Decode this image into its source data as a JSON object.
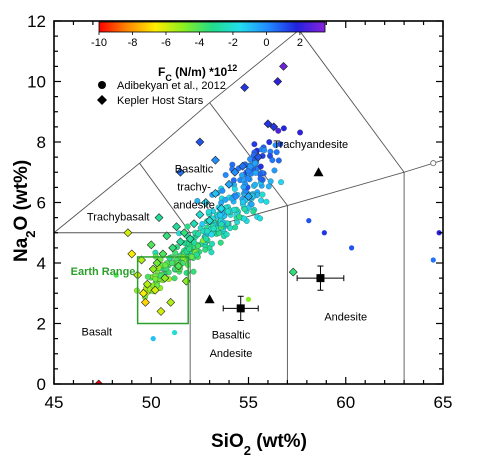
{
  "chart_data": {
    "type": "scatter",
    "xlabel_main": "SiO",
    "xlabel_sub": "2",
    "xlabel_tail": " (wt%)",
    "ylabel_main": "Na",
    "ylabel_sub": "2",
    "ylabel_tail": "O (wt%)",
    "xlim": [
      45,
      65
    ],
    "ylim": [
      0,
      12
    ],
    "xticks": [
      "45",
      "50",
      "55",
      "60",
      "65"
    ],
    "yticks": [
      "0",
      "2",
      "4",
      "6",
      "8",
      "10",
      "12"
    ],
    "colorbar": {
      "title_main": "F",
      "title_sub": "C",
      "title_mid": " (N/m) *10",
      "title_sup": "12",
      "range": [
        -10,
        3.5
      ],
      "ticks": [
        "-10",
        "-8",
        "-6",
        "-4",
        "-2",
        "0",
        "2"
      ],
      "gradient": [
        "#ff0000",
        "#ff8800",
        "#ffee00",
        "#88ee22",
        "#22dd88",
        "#22ddee",
        "#2288ff",
        "#2222dd",
        "#8822dd"
      ]
    },
    "legend": [
      {
        "marker": "circle",
        "label": "Adibekyan et al., 2012"
      },
      {
        "marker": "diamond",
        "label": "Kepler Host Stars"
      }
    ],
    "fields": [
      {
        "label": "Trachyandesite",
        "x": 58.2,
        "y": 7.8
      },
      {
        "label": "Basaltic",
        "x": 52.2,
        "y": 7.0
      },
      {
        "label": "trachy-",
        "x": 52.2,
        "y": 6.4
      },
      {
        "label": "andesite",
        "x": 52.2,
        "y": 5.8
      },
      {
        "label": "Trachybasalt",
        "x": 48.3,
        "y": 5.4
      },
      {
        "label": "Basalt",
        "x": 47.2,
        "y": 1.6
      },
      {
        "label": "Basaltic",
        "x": 54.1,
        "y": 1.5
      },
      {
        "label": "Andesite",
        "x": 54.1,
        "y": 0.9
      },
      {
        "label": "Andesite",
        "x": 60.0,
        "y": 2.1
      }
    ],
    "earth_range": {
      "label": "Earth Range",
      "x": [
        49.3,
        51.9
      ],
      "y": [
        2.0,
        4.2
      ]
    },
    "boundaries": [
      [
        [
          45,
          5
        ],
        [
          52,
          5
        ],
        [
          52,
          0
        ]
      ],
      [
        [
          52,
          5
        ],
        [
          57,
          5.9
        ],
        [
          57,
          0
        ]
      ],
      [
        [
          57,
          5.9
        ],
        [
          63,
          7.0
        ],
        [
          63,
          0
        ]
      ],
      [
        [
          45,
          5
        ],
        [
          49.4,
          7.3
        ],
        [
          53,
          9.3
        ],
        [
          57.6,
          11.7
        ]
      ],
      [
        [
          49.4,
          7.3
        ],
        [
          52,
          5
        ]
      ],
      [
        [
          53,
          9.3
        ],
        [
          57,
          5.9
        ]
      ],
      [
        [
          57.6,
          11.7
        ],
        [
          63,
          7.0
        ]
      ],
      [
        [
          63,
          7.0
        ],
        [
          65,
          7.4
        ]
      ]
    ],
    "error_points": [
      {
        "x": 54.6,
        "y": 2.5,
        "xerr": 0.9,
        "yerr": 0.4
      },
      {
        "x": 58.7,
        "y": 3.5,
        "xerr": 1.2,
        "yerr": 0.4
      }
    ],
    "triangles": [
      {
        "x": 53.0,
        "y": 2.8
      },
      {
        "x": 58.6,
        "y": 7.0
      }
    ],
    "open_circles": [
      {
        "x": 64.5,
        "y": 7.3
      }
    ],
    "diamonds": [
      {
        "x": 47.3,
        "y": 0.0,
        "c": -10
      },
      {
        "x": 48.8,
        "y": 5.0,
        "c": -6
      },
      {
        "x": 49.0,
        "y": 4.3,
        "c": -6.5
      },
      {
        "x": 49.3,
        "y": 3.6,
        "c": -6
      },
      {
        "x": 49.5,
        "y": 4.1,
        "c": -5.5
      },
      {
        "x": 49.6,
        "y": 3.0,
        "c": -6.5
      },
      {
        "x": 49.7,
        "y": 2.7,
        "c": -7
      },
      {
        "x": 49.8,
        "y": 3.3,
        "c": -5.5
      },
      {
        "x": 50.0,
        "y": 4.6,
        "c": -4
      },
      {
        "x": 50.1,
        "y": 3.8,
        "c": -5
      },
      {
        "x": 50.2,
        "y": 3.1,
        "c": -6
      },
      {
        "x": 50.3,
        "y": 4.0,
        "c": -4.5
      },
      {
        "x": 50.4,
        "y": 5.5,
        "c": -3
      },
      {
        "x": 50.5,
        "y": 2.4,
        "c": -6
      },
      {
        "x": 50.6,
        "y": 4.3,
        "c": -4
      },
      {
        "x": 50.7,
        "y": 3.5,
        "c": -5
      },
      {
        "x": 50.8,
        "y": 4.9,
        "c": -3.5
      },
      {
        "x": 51.0,
        "y": 2.7,
        "c": -5.5
      },
      {
        "x": 51.1,
        "y": 4.5,
        "c": -3.5
      },
      {
        "x": 51.3,
        "y": 5.2,
        "c": -3
      },
      {
        "x": 51.4,
        "y": 3.9,
        "c": -4
      },
      {
        "x": 51.5,
        "y": 4.7,
        "c": -3
      },
      {
        "x": 51.7,
        "y": 5.0,
        "c": -3.5
      },
      {
        "x": 51.8,
        "y": 3.4,
        "c": -5
      },
      {
        "x": 52.0,
        "y": 4.8,
        "c": -3
      },
      {
        "x": 52.2,
        "y": 5.3,
        "c": -2.5
      },
      {
        "x": 52.5,
        "y": 5.6,
        "c": -2
      },
      {
        "x": 52.8,
        "y": 6.0,
        "c": -1.5
      },
      {
        "x": 53.0,
        "y": 5.4,
        "c": -2
      },
      {
        "x": 53.3,
        "y": 6.3,
        "c": -1
      },
      {
        "x": 53.6,
        "y": 5.8,
        "c": -1.5
      },
      {
        "x": 54.0,
        "y": 6.6,
        "c": -0.5
      },
      {
        "x": 54.3,
        "y": 7.0,
        "c": 0
      },
      {
        "x": 54.7,
        "y": 7.2,
        "c": 0.5
      },
      {
        "x": 55.0,
        "y": 6.2,
        "c": -0.5
      },
      {
        "x": 55.5,
        "y": 7.5,
        "c": 1
      },
      {
        "x": 56.0,
        "y": 8.6,
        "c": 1.5
      },
      {
        "x": 56.3,
        "y": 8.5,
        "c": 1.5
      },
      {
        "x": 56.5,
        "y": 10.0,
        "c": 2
      },
      {
        "x": 56.8,
        "y": 10.5,
        "c": 3
      },
      {
        "x": 57.3,
        "y": 3.7,
        "c": -3.5
      },
      {
        "x": 51.5,
        "y": 7.0,
        "c": 0.5
      },
      {
        "x": 52.5,
        "y": 8.0,
        "c": 1
      },
      {
        "x": 53.3,
        "y": 7.4,
        "c": 0
      },
      {
        "x": 54.8,
        "y": 9.8,
        "c": 1.5
      }
    ],
    "circle_clusters": [
      {
        "cx": 53.6,
        "cy": 5.4,
        "sx": 1.4,
        "sy": 0.75,
        "tilt": 0.55,
        "n": 210,
        "cbase": -2.0,
        "cslope": 1.15
      },
      {
        "cx": 51.2,
        "cy": 4.0,
        "sx": 0.9,
        "sy": 0.45,
        "tilt": 0.5,
        "n": 70,
        "cbase": -4.0,
        "cslope": 0.9
      },
      {
        "cx": 55.3,
        "cy": 7.2,
        "sx": 0.8,
        "sy": 0.6,
        "tilt": 0.6,
        "n": 60,
        "cbase": 0.5,
        "cslope": 0.8
      }
    ],
    "extra_circles": [
      {
        "x": 48.2,
        "y": 3.6,
        "c": -4
      },
      {
        "x": 50.1,
        "y": 1.5,
        "c": -1
      },
      {
        "x": 51.2,
        "y": 1.7,
        "c": -2
      },
      {
        "x": 55.0,
        "y": 2.8,
        "c": -5
      },
      {
        "x": 58.1,
        "y": 5.4,
        "c": 1
      },
      {
        "x": 58.9,
        "y": 5.0,
        "c": 1.5
      },
      {
        "x": 60.3,
        "y": 4.5,
        "c": 1
      },
      {
        "x": 64.5,
        "y": 4.1,
        "c": 0.5
      },
      {
        "x": 64.8,
        "y": 5.0,
        "c": 2
      }
    ]
  }
}
